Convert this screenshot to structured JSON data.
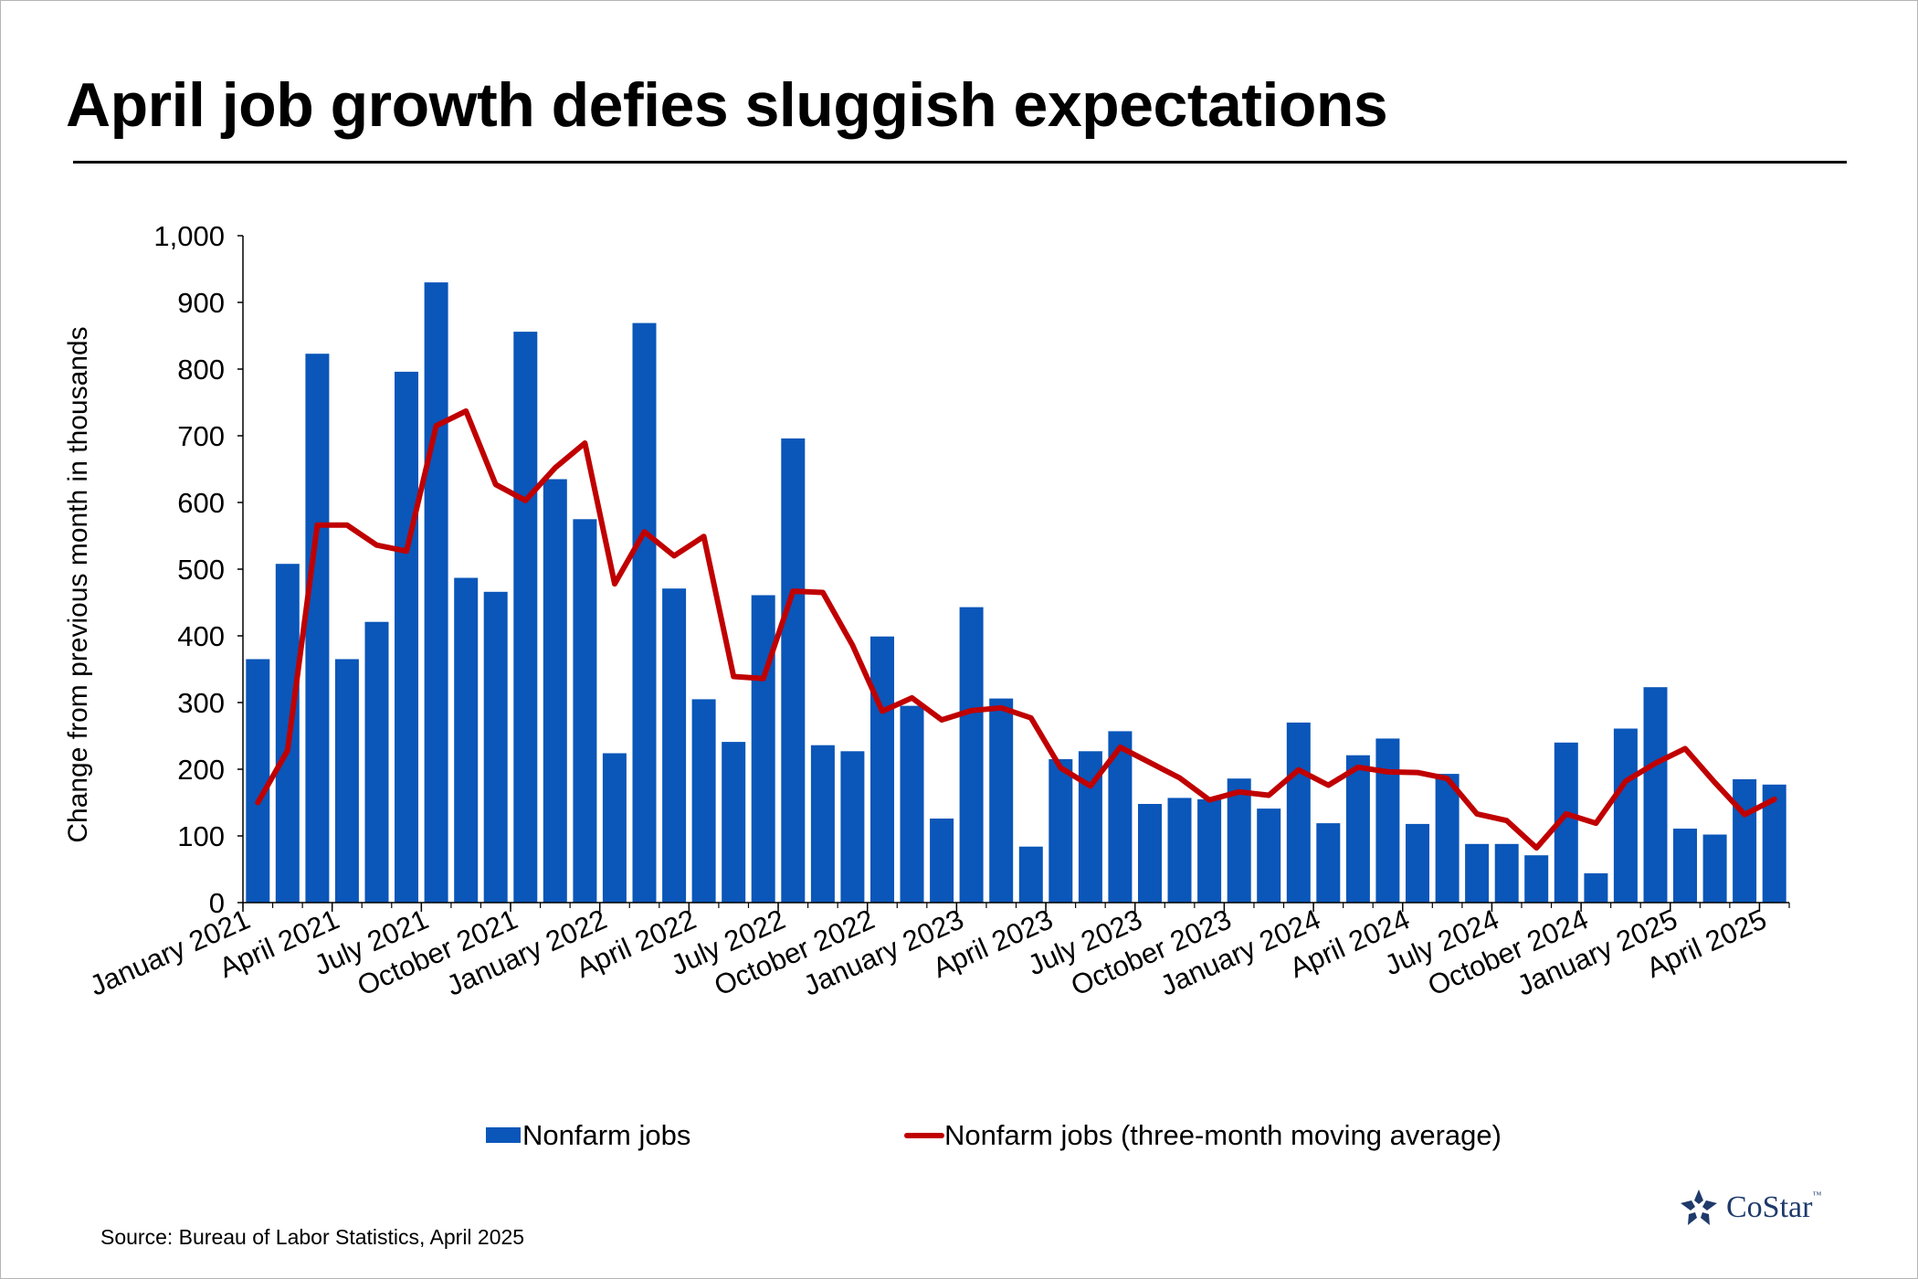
{
  "title": "April job growth defies sluggish expectations",
  "source": "Source: Bureau of Labor Statistics, April 2025",
  "logo": {
    "name": "CoStar",
    "tm": "™",
    "icon": "costar-star-icon"
  },
  "colors": {
    "bars": "#0a56b9",
    "line": "#c00000",
    "axis": "#000000"
  },
  "chart_data": {
    "type": "bar",
    "ylabel": "Change from previous month in thousands",
    "xlabel": "",
    "ylim": [
      0,
      1000
    ],
    "yticks": [
      0,
      100,
      200,
      300,
      400,
      500,
      600,
      700,
      800,
      900,
      1000
    ],
    "ytick_labels": [
      "0",
      "100",
      "200",
      "300",
      "400",
      "500",
      "600",
      "700",
      "800",
      "900",
      "1,000"
    ],
    "grid": false,
    "legend": "bottom-center",
    "xtick_labels": [
      {
        "index": 0,
        "label": "January 2021"
      },
      {
        "index": 3,
        "label": "April 2021"
      },
      {
        "index": 6,
        "label": "July 2021"
      },
      {
        "index": 9,
        "label": "October 2021"
      },
      {
        "index": 12,
        "label": "January 2022"
      },
      {
        "index": 15,
        "label": "April 2022"
      },
      {
        "index": 18,
        "label": "July 2022"
      },
      {
        "index": 21,
        "label": "October 2022"
      },
      {
        "index": 24,
        "label": "January 2023"
      },
      {
        "index": 27,
        "label": "April 2023"
      },
      {
        "index": 30,
        "label": "July 2023"
      },
      {
        "index": 33,
        "label": "October 2023"
      },
      {
        "index": 36,
        "label": "January 2024"
      },
      {
        "index": 39,
        "label": "April 2024"
      },
      {
        "index": 42,
        "label": "July 2024"
      },
      {
        "index": 45,
        "label": "October 2024"
      },
      {
        "index": 48,
        "label": "January 2025"
      },
      {
        "index": 51,
        "label": "April 2025"
      }
    ],
    "series": [
      {
        "name": "Nonfarm jobs",
        "type": "bar",
        "values": [
          365,
          508,
          823,
          365,
          421,
          796,
          930,
          487,
          466,
          856,
          635,
          575,
          224,
          869,
          471,
          305,
          241,
          461,
          696,
          236,
          227,
          399,
          295,
          126,
          443,
          306,
          84,
          215,
          227,
          257,
          148,
          157,
          155,
          186,
          141,
          270,
          119,
          221,
          246,
          118,
          193,
          88,
          88,
          71,
          240,
          44,
          261,
          323,
          111,
          102,
          185,
          177
        ]
      },
      {
        "name": "Nonfarm jobs (three-month moving average)",
        "type": "line",
        "values": [
          150,
          228,
          566,
          566,
          536,
          527,
          715,
          737,
          627,
          603,
          652,
          689,
          478,
          556,
          520,
          549,
          339,
          336,
          467,
          465,
          386,
          287,
          307,
          274,
          288,
          292,
          277,
          202,
          175,
          233,
          210,
          187,
          154,
          166,
          161,
          199,
          176,
          203,
          196,
          195,
          186,
          133,
          123,
          82,
          133,
          119,
          182,
          209,
          231,
          180,
          132,
          155
        ]
      }
    ]
  }
}
